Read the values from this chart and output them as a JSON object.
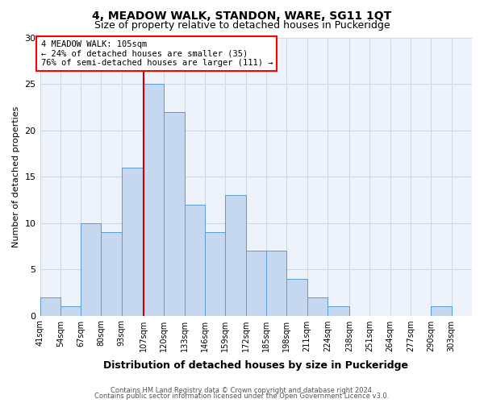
{
  "title": "4, MEADOW WALK, STANDON, WARE, SG11 1QT",
  "subtitle": "Size of property relative to detached houses in Puckeridge",
  "xlabel": "Distribution of detached houses by size in Puckeridge",
  "ylabel": "Number of detached properties",
  "bar_labels": [
    "41sqm",
    "54sqm",
    "67sqm",
    "80sqm",
    "93sqm",
    "107sqm",
    "120sqm",
    "133sqm",
    "146sqm",
    "159sqm",
    "172sqm",
    "185sqm",
    "198sqm",
    "211sqm",
    "224sqm",
    "238sqm",
    "251sqm",
    "264sqm",
    "277sqm",
    "290sqm",
    "303sqm"
  ],
  "bar_values": [
    2,
    1,
    10,
    9,
    16,
    25,
    22,
    12,
    9,
    13,
    7,
    7,
    4,
    2,
    1,
    0,
    0,
    0,
    0,
    1,
    0
  ],
  "bar_edges": [
    41,
    54,
    67,
    80,
    93,
    107,
    120,
    133,
    146,
    159,
    172,
    185,
    198,
    211,
    224,
    238,
    251,
    264,
    277,
    290,
    303,
    316
  ],
  "property_line_x": 107,
  "bar_color": "#c5d8f0",
  "bar_edge_color": "#5b9bd5",
  "vline_color": "#cc0000",
  "ylim": [
    0,
    30
  ],
  "yticks": [
    0,
    5,
    10,
    15,
    20,
    25,
    30
  ],
  "grid_color": "#d0d8e8",
  "background_color": "#eef2fa",
  "annotation_line1": "4 MEADOW WALK: 105sqm",
  "annotation_line2": "← 24% of detached houses are smaller (35)",
  "annotation_line3": "76% of semi-detached houses are larger (111) →",
  "footer1": "Contains HM Land Registry data © Crown copyright and database right 2024.",
  "footer2": "Contains public sector information licensed under the Open Government Licence v3.0."
}
